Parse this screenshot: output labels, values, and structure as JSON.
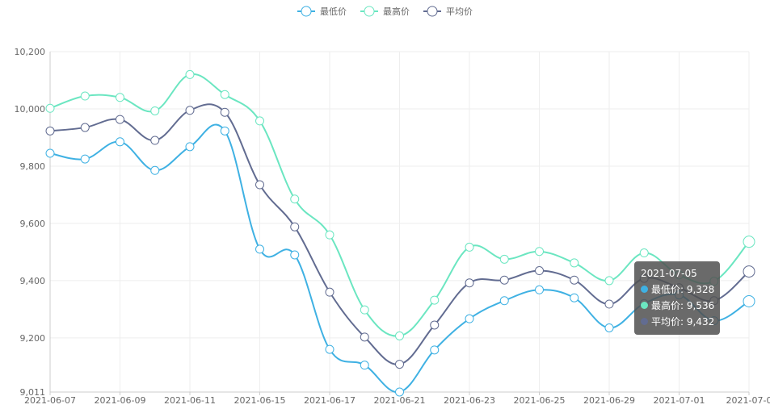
{
  "chart_data": {
    "type": "line",
    "legend": {
      "position": "top-center"
    },
    "x": [
      "2021-06-07",
      "2021-06-08",
      "2021-06-09",
      "2021-06-10",
      "2021-06-11",
      "2021-06-14",
      "2021-06-15",
      "2021-06-16",
      "2021-06-17",
      "2021-06-18",
      "2021-06-21",
      "2021-06-22",
      "2021-06-23",
      "2021-06-24",
      "2021-06-25",
      "2021-06-28",
      "2021-06-29",
      "2021-06-30",
      "2021-07-01",
      "2021-07-02",
      "2021-07-05"
    ],
    "x_tick_labels": [
      "2021-06-07",
      "2021-06-09",
      "2021-06-11",
      "2021-06-15",
      "2021-06-17",
      "2021-06-21",
      "2021-06-23",
      "2021-06-25",
      "2021-06-29",
      "2021-07-01",
      "2021-07-0"
    ],
    "y_tick_labels": [
      "9,011",
      "9,200",
      "9,400",
      "9,600",
      "9,800",
      "10,000",
      "10,200"
    ],
    "ylim": [
      9011,
      10200
    ],
    "grid": true,
    "series": [
      {
        "name": "最低价",
        "color": "#3fb1e3",
        "values": [
          9845,
          9825,
          9885,
          9785,
          9868,
          9923,
          9510,
          9490,
          9160,
          9105,
          9011,
          9158,
          9267,
          9330,
          9368,
          9340,
          9235,
          9320,
          9350,
          9260,
          9328
        ]
      },
      {
        "name": "最高价",
        "color": "#6be6c1",
        "values": [
          10002,
          10045,
          10040,
          9993,
          10120,
          10050,
          9958,
          9685,
          9560,
          9298,
          9207,
          9332,
          9517,
          9475,
          9502,
          9462,
          9400,
          9497,
          9420,
          9398,
          9536
        ]
      },
      {
        "name": "平均价",
        "color": "#626c91",
        "values": [
          9923,
          9935,
          9963,
          9890,
          9995,
          9988,
          9735,
          9588,
          9360,
          9203,
          9108,
          9245,
          9392,
          9402,
          9435,
          9402,
          9318,
          9408,
          9375,
          9330,
          9432
        ]
      }
    ],
    "tooltip": {
      "title": "2021-07-05",
      "rows": [
        {
          "label": "最低价: 9,328",
          "color": "#3fb1e3"
        },
        {
          "label": "最高价: 9,536",
          "color": "#6be6c1"
        },
        {
          "label": "平均价: 9,432",
          "color": "#626c91"
        }
      ]
    }
  }
}
